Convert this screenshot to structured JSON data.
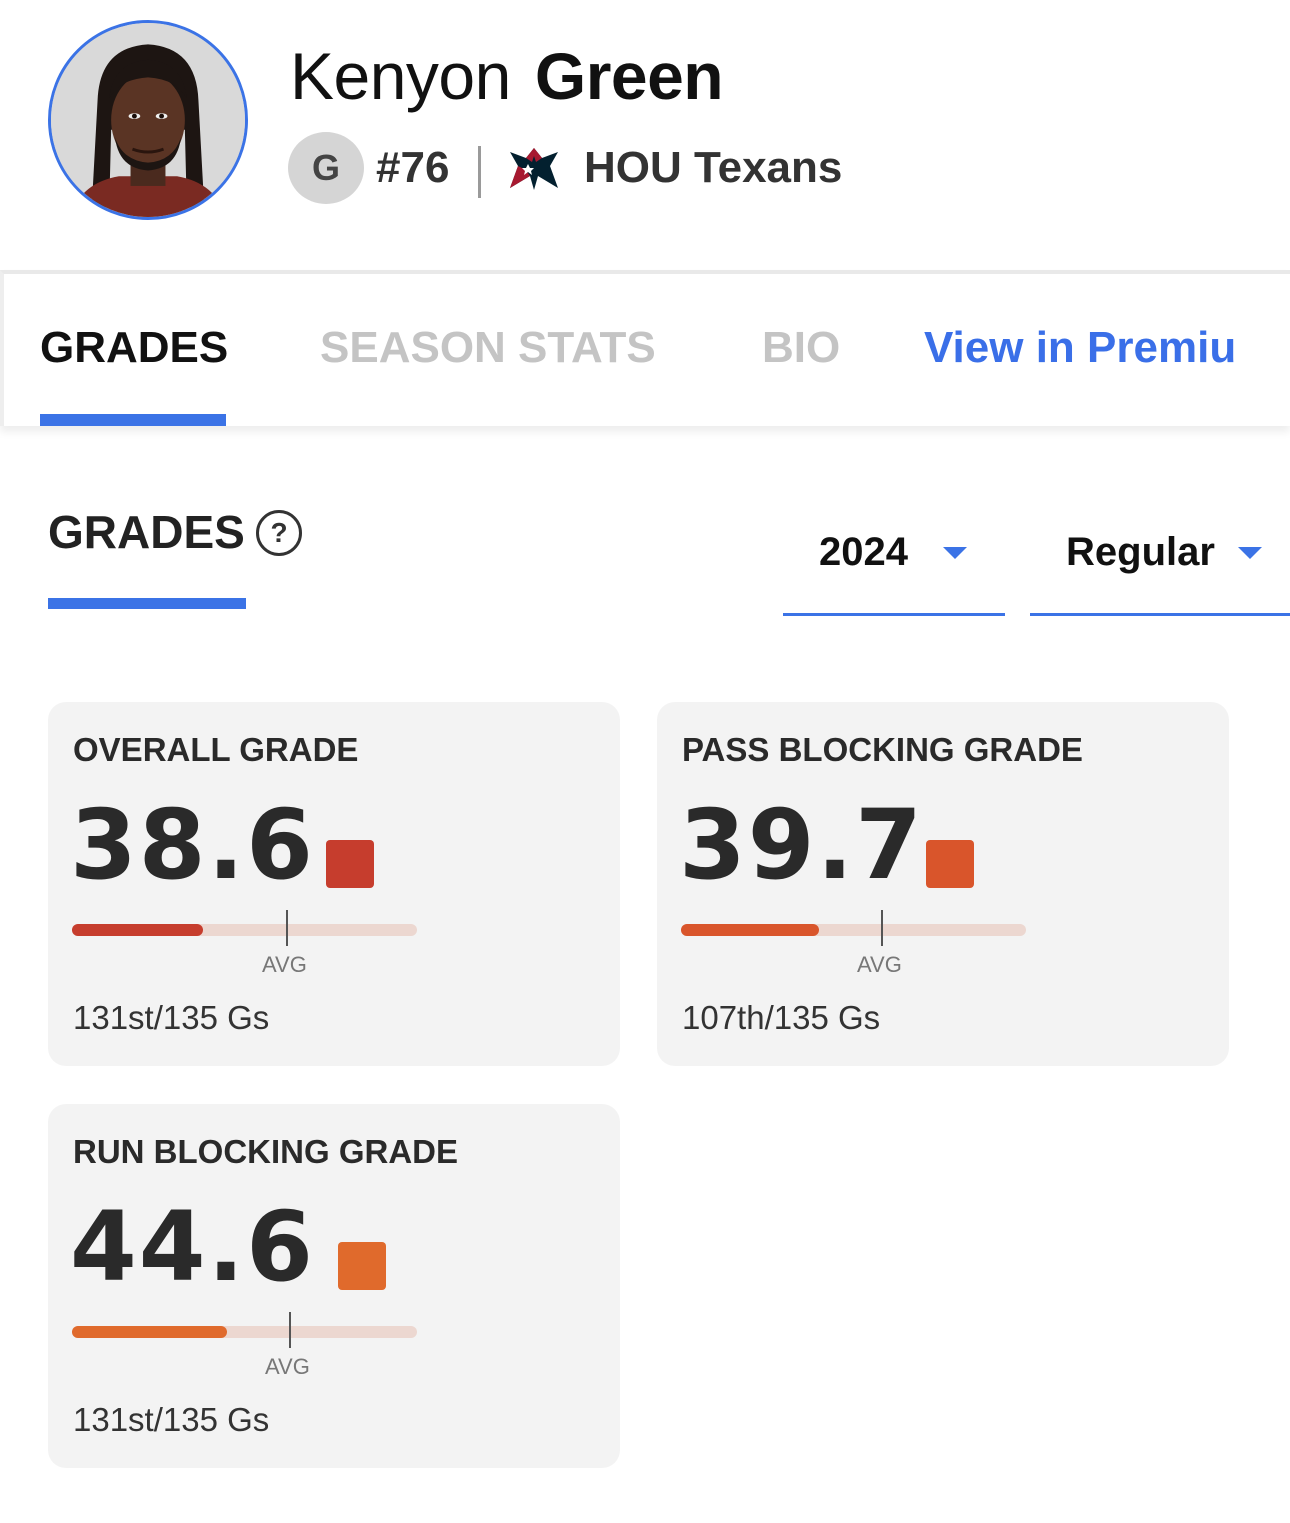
{
  "player": {
    "first_name": "Kenyon",
    "last_name": "Green",
    "position": "G",
    "jersey": "#76",
    "team": "HOU Texans",
    "team_logo_icon": "houston-texans-logo"
  },
  "tabs": [
    {
      "label": "GRADES",
      "state": "active"
    },
    {
      "label": "SEASON STATS",
      "state": "inactive"
    },
    {
      "label": "BIO",
      "state": "inactive"
    },
    {
      "label": "View in Premiu",
      "state": "link"
    }
  ],
  "section": {
    "title": "GRADES",
    "help_icon": "?",
    "season_select": "2024",
    "type_select": "Regular"
  },
  "grades": [
    {
      "title": "OVERALL GRADE",
      "score": "38.6",
      "color": "#c63d2d",
      "fill_fraction": 0.38,
      "avg_fraction": 0.62,
      "avg_label": "AVG",
      "rank": "131st/135 Gs"
    },
    {
      "title": "PASS BLOCKING GRADE",
      "score": "39.7",
      "color": "#d9552b",
      "fill_fraction": 0.4,
      "avg_fraction": 0.58,
      "avg_label": "AVG",
      "rank": "107th/135 Gs"
    },
    {
      "title": "RUN BLOCKING GRADE",
      "score": "44.6",
      "color": "#e06a2c",
      "fill_fraction": 0.45,
      "avg_fraction": 0.63,
      "avg_label": "AVG",
      "rank": "131st/135 Gs"
    }
  ],
  "colors": {
    "accent": "#3b73e6",
    "card_bg": "#f3f3f3",
    "track": "#ecd7d0"
  }
}
